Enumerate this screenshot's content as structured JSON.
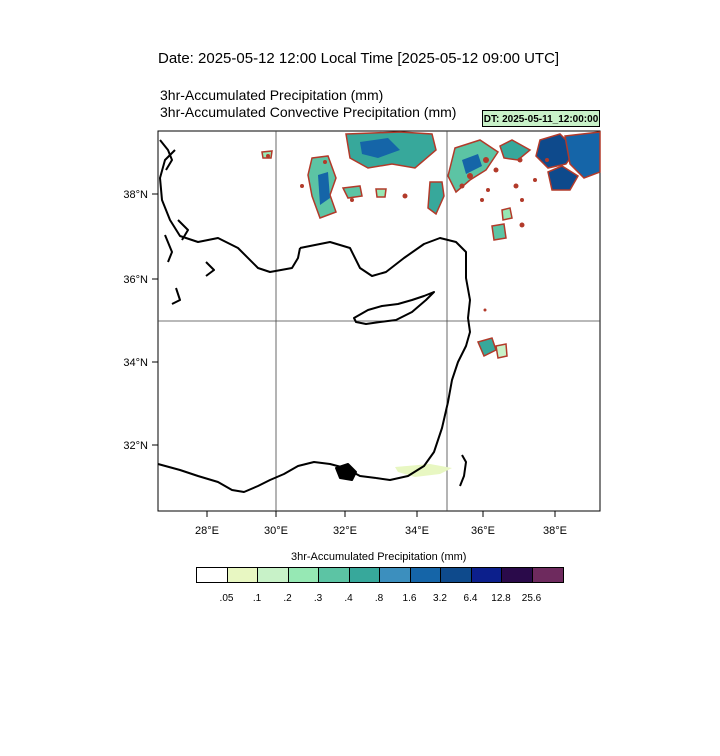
{
  "header": {
    "date_line": "Date: 2025-05-12  12:00 Local Time [2025-05-12  09:00 UTC]",
    "title_1": "3hr-Accumulated Precipitation   (mm)",
    "title_2": "3hr-Accumulated Convective Precipitation   (mm)",
    "dt_label": "DT: 2025-05-11_12:00:00"
  },
  "map": {
    "lon_ticks": [
      "28°E",
      "30°E",
      "32°E",
      "34°E",
      "36°E",
      "38°E"
    ],
    "lat_ticks": [
      "38°N",
      "36°N",
      "34°N",
      "32°N"
    ],
    "gridlines": true
  },
  "colorbar": {
    "title": "3hr-Accumulated Precipitation   (mm)",
    "colors": [
      "#ffffff",
      "#e8f7c2",
      "#c8f2c8",
      "#96e8b4",
      "#5cc4a4",
      "#37a89b",
      "#3c8fbe",
      "#1565a8",
      "#0e4a8c",
      "#0c1f8c",
      "#2a0a4a",
      "#6e2a5e"
    ],
    "labels": [
      ".05",
      ".1",
      ".2",
      ".3",
      ".4",
      ".8",
      "1.6",
      "3.2",
      "6.4",
      "12.8",
      "25.6"
    ]
  }
}
